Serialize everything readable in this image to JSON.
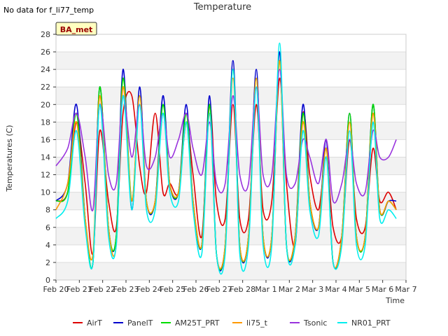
{
  "header": {
    "no_data_note": "No data for f_li77_temp"
  },
  "chart_data": {
    "type": "line",
    "title": "Temperature",
    "xlabel": "Time",
    "ylabel": "Temperatures (C)",
    "station_label": "BA_met",
    "ylim": [
      0,
      28
    ],
    "yticks": [
      0,
      2,
      4,
      6,
      8,
      10,
      12,
      14,
      16,
      18,
      20,
      22,
      24,
      26,
      28
    ],
    "xlim": [
      "2023-02-20",
      "2023-03-07"
    ],
    "xticks": [
      "Feb 20",
      "Feb 21",
      "Feb 22",
      "Feb 23",
      "Feb 24",
      "Feb 25",
      "Feb 26",
      "Feb 27",
      "Feb 28",
      "Mar 1",
      "Mar 2",
      "Mar 3",
      "Mar 4",
      "Mar 5",
      "Mar 6",
      "Mar 7"
    ],
    "grid": true,
    "legend_position": "bottom",
    "series": [
      {
        "name": "AirT",
        "color": "#dd0000",
        "x": [
          "2023-02-20",
          "2023-02-20 12:00",
          "2023-02-20 21:00",
          "2023-02-21 06:00",
          "2023-02-21 14:00",
          "2023-02-21 21:00",
          "2023-02-22 06:00",
          "2023-02-22 14:00",
          "2023-02-22 21:00",
          "2023-02-23 06:00",
          "2023-02-23 14:00",
          "2023-02-23 21:00",
          "2023-02-24 06:00",
          "2023-02-24 14:00",
          "2023-02-24 21:00",
          "2023-02-25 06:00",
          "2023-02-25 14:00",
          "2023-02-25 21:00",
          "2023-02-26 06:00",
          "2023-02-26 14:00",
          "2023-02-26 21:00",
          "2023-02-27 06:00",
          "2023-02-27 14:00",
          "2023-02-27 21:00",
          "2023-02-28 06:00",
          "2023-02-28 14:00",
          "2023-02-28 21:00",
          "2023-03-01 06:00",
          "2023-03-01 14:00",
          "2023-03-01 21:00",
          "2023-03-02 06:00",
          "2023-03-02 14:00",
          "2023-03-02 21:00",
          "2023-03-03 06:00",
          "2023-03-03 14:00",
          "2023-03-03 21:00",
          "2023-03-04 06:00",
          "2023-03-04 14:00",
          "2023-03-04 21:00",
          "2023-03-05 06:00",
          "2023-03-05 14:00",
          "2023-03-05 21:00",
          "2023-03-06 06:00",
          "2023-03-06 14:00"
        ],
        "y": [
          9,
          10,
          18,
          11,
          3,
          17,
          9,
          6,
          19,
          21,
          13,
          10,
          19,
          10,
          11,
          10,
          18,
          12,
          5,
          20,
          9,
          7,
          20,
          7,
          7,
          20,
          8,
          9,
          23,
          11,
          4,
          19,
          12,
          8,
          14,
          6,
          5,
          16,
          7,
          6,
          15,
          9,
          10,
          8
        ]
      },
      {
        "name": "PanelT",
        "color": "#0000cc",
        "x": [
          "2023-02-20",
          "2023-02-20 12:00",
          "2023-02-20 21:00",
          "2023-02-21 06:00",
          "2023-02-21 14:00",
          "2023-02-21 21:00",
          "2023-02-22 06:00",
          "2023-02-22 14:00",
          "2023-02-22 21:00",
          "2023-02-23 06:00",
          "2023-02-23 14:00",
          "2023-02-23 21:00",
          "2023-02-24 06:00",
          "2023-02-24 14:00",
          "2023-02-24 21:00",
          "2023-02-25 06:00",
          "2023-02-25 14:00",
          "2023-02-25 21:00",
          "2023-02-26 06:00",
          "2023-02-26 14:00",
          "2023-02-26 21:00",
          "2023-02-27 06:00",
          "2023-02-27 14:00",
          "2023-02-27 21:00",
          "2023-02-28 06:00",
          "2023-02-28 14:00",
          "2023-02-28 21:00",
          "2023-03-01 06:00",
          "2023-03-01 14:00",
          "2023-03-01 21:00",
          "2023-03-02 06:00",
          "2023-03-02 14:00",
          "2023-03-02 21:00",
          "2023-03-03 06:00",
          "2023-03-03 14:00",
          "2023-03-03 21:00",
          "2023-03-04 06:00",
          "2023-03-04 14:00",
          "2023-03-04 21:00",
          "2023-03-05 06:00",
          "2023-03-05 14:00",
          "2023-03-05 21:00",
          "2023-03-06 06:00",
          "2023-03-06 14:00"
        ],
        "y": [
          9,
          11,
          20,
          7,
          2,
          22,
          6,
          5,
          24,
          8,
          22,
          9,
          9,
          21,
          11,
          10,
          20,
          9,
          4,
          21,
          3,
          4,
          25,
          4,
          5,
          24,
          5,
          5,
          26,
          4,
          5,
          20,
          9,
          6,
          16,
          2,
          5,
          19,
          5,
          5,
          20,
          8,
          9,
          9
        ]
      },
      {
        "name": "AM25T_PRT",
        "color": "#00dd00",
        "x": [
          "2023-02-20",
          "2023-02-20 12:00",
          "2023-02-20 21:00",
          "2023-02-21 06:00",
          "2023-02-21 14:00",
          "2023-02-21 21:00",
          "2023-02-22 06:00",
          "2023-02-22 14:00",
          "2023-02-22 21:00",
          "2023-02-23 06:00",
          "2023-02-23 14:00",
          "2023-02-23 21:00",
          "2023-02-24 06:00",
          "2023-02-24 14:00",
          "2023-02-24 21:00",
          "2023-02-25 06:00",
          "2023-02-25 14:00",
          "2023-02-25 21:00",
          "2023-02-26 06:00",
          "2023-02-26 14:00",
          "2023-02-26 21:00",
          "2023-02-27 06:00",
          "2023-02-27 14:00",
          "2023-02-27 21:00",
          "2023-02-28 06:00",
          "2023-02-28 14:00",
          "2023-02-28 21:00",
          "2023-03-01 06:00",
          "2023-03-01 14:00",
          "2023-03-01 21:00",
          "2023-03-02 06:00",
          "2023-03-02 14:00",
          "2023-03-02 21:00",
          "2023-03-03 06:00",
          "2023-03-03 14:00",
          "2023-03-03 21:00",
          "2023-03-04 06:00",
          "2023-03-04 14:00",
          "2023-03-04 21:00",
          "2023-03-05 06:00",
          "2023-03-05 14:00",
          "2023-03-05 21:00",
          "2023-03-06 06:00",
          "2023-03-06 14:00"
        ],
        "y": [
          9,
          10,
          19,
          7,
          2,
          22,
          6,
          5,
          23,
          9,
          21,
          9,
          9,
          20,
          11,
          10,
          19,
          9,
          4,
          20,
          3,
          4,
          24,
          4,
          5,
          23,
          5,
          5,
          25,
          4,
          5,
          19,
          9,
          6,
          15,
          2,
          5,
          19,
          5,
          5,
          20,
          8,
          9,
          8
        ]
      },
      {
        "name": "li75_t",
        "color": "#ff9900",
        "x": [
          "2023-02-20",
          "2023-02-20 12:00",
          "2023-02-20 21:00",
          "2023-02-21 06:00",
          "2023-02-21 14:00",
          "2023-02-21 21:00",
          "2023-02-22 06:00",
          "2023-02-22 14:00",
          "2023-02-22 21:00",
          "2023-02-23 06:00",
          "2023-02-23 14:00",
          "2023-02-23 21:00",
          "2023-02-24 06:00",
          "2023-02-24 14:00",
          "2023-02-24 21:00",
          "2023-02-25 06:00",
          "2023-02-25 14:00",
          "2023-02-25 21:00",
          "2023-02-26 06:00",
          "2023-02-26 14:00",
          "2023-02-26 21:00",
          "2023-02-27 06:00",
          "2023-02-27 14:00",
          "2023-02-27 21:00",
          "2023-02-28 06:00",
          "2023-02-28 14:00",
          "2023-02-28 21:00",
          "2023-03-01 06:00",
          "2023-03-01 14:00",
          "2023-03-01 21:00",
          "2023-03-02 06:00",
          "2023-03-02 14:00",
          "2023-03-02 21:00",
          "2023-03-03 06:00",
          "2023-03-03 14:00",
          "2023-03-03 21:00",
          "2023-03-04 06:00",
          "2023-03-04 14:00",
          "2023-03-04 21:00",
          "2023-03-05 06:00",
          "2023-03-05 14:00",
          "2023-03-05 21:00",
          "2023-03-06 06:00",
          "2023-03-06 14:00"
        ],
        "y": [
          8,
          11,
          18,
          7,
          3,
          21,
          6,
          4,
          22,
          9,
          21,
          9,
          9,
          19,
          11,
          10,
          18,
          9,
          4,
          19,
          3,
          4,
          23,
          4,
          5,
          23,
          5,
          5,
          25,
          4,
          5,
          18,
          9,
          6,
          15,
          2,
          5,
          18,
          5,
          5,
          19,
          8,
          9,
          8
        ]
      },
      {
        "name": "Tsonic",
        "color": "#9933dd",
        "x": [
          "2023-02-20",
          "2023-02-20 12:00",
          "2023-02-20 21:00",
          "2023-02-21 06:00",
          "2023-02-21 14:00",
          "2023-02-21 21:00",
          "2023-02-22 06:00",
          "2023-02-22 14:00",
          "2023-02-22 21:00",
          "2023-02-23 06:00",
          "2023-02-23 14:00",
          "2023-02-23 21:00",
          "2023-02-24 06:00",
          "2023-02-24 14:00",
          "2023-02-24 21:00",
          "2023-02-25 06:00",
          "2023-02-25 14:00",
          "2023-02-25 21:00",
          "2023-02-26 06:00",
          "2023-02-26 14:00",
          "2023-02-26 21:00",
          "2023-02-27 06:00",
          "2023-02-27 14:00",
          "2023-02-27 21:00",
          "2023-02-28 06:00",
          "2023-02-28 14:00",
          "2023-02-28 21:00",
          "2023-03-01 06:00",
          "2023-03-01 14:00",
          "2023-03-01 21:00",
          "2023-03-02 06:00",
          "2023-03-02 14:00",
          "2023-03-02 21:00",
          "2023-03-03 06:00",
          "2023-03-03 14:00",
          "2023-03-03 21:00",
          "2023-03-04 06:00",
          "2023-03-04 14:00",
          "2023-03-04 21:00",
          "2023-03-05 06:00",
          "2023-03-05 14:00",
          "2023-03-05 21:00",
          "2023-03-06 06:00",
          "2023-03-06 14:00"
        ],
        "y": [
          13,
          15,
          19,
          14,
          8,
          20,
          12,
          11,
          21,
          14,
          20,
          13,
          14,
          19,
          14,
          16,
          19,
          15,
          12,
          18,
          11,
          11,
          21,
          12,
          11,
          22,
          12,
          12,
          24,
          12,
          11,
          16,
          14,
          11,
          16,
          9,
          11,
          16,
          11,
          10,
          17,
          14,
          14,
          16
        ]
      },
      {
        "name": "NR01_PRT",
        "color": "#00eeee",
        "x": [
          "2023-02-20",
          "2023-02-20 12:00",
          "2023-02-20 21:00",
          "2023-02-21 06:00",
          "2023-02-21 14:00",
          "2023-02-21 21:00",
          "2023-02-22 06:00",
          "2023-02-22 14:00",
          "2023-02-22 21:00",
          "2023-02-23 06:00",
          "2023-02-23 14:00",
          "2023-02-23 21:00",
          "2023-02-24 06:00",
          "2023-02-24 14:00",
          "2023-02-24 21:00",
          "2023-02-25 06:00",
          "2023-02-25 14:00",
          "2023-02-25 21:00",
          "2023-02-26 06:00",
          "2023-02-26 14:00",
          "2023-02-26 21:00",
          "2023-02-27 06:00",
          "2023-02-27 14:00",
          "2023-02-27 21:00",
          "2023-02-28 06:00",
          "2023-02-28 14:00",
          "2023-02-28 21:00",
          "2023-03-01 06:00",
          "2023-03-01 14:00",
          "2023-03-01 21:00",
          "2023-03-02 06:00",
          "2023-03-02 14:00",
          "2023-03-02 21:00",
          "2023-03-03 06:00",
          "2023-03-03 14:00",
          "2023-03-03 21:00",
          "2023-03-04 06:00",
          "2023-03-04 14:00",
          "2023-03-04 21:00",
          "2023-03-05 06:00",
          "2023-03-05 14:00",
          "2023-03-05 21:00",
          "2023-03-06 06:00",
          "2023-03-06 14:00"
        ],
        "y": [
          7,
          9,
          17,
          6,
          2,
          20,
          5,
          4,
          21,
          8,
          20,
          8,
          8,
          19,
          10,
          9,
          18,
          8,
          3,
          19,
          3,
          3,
          24,
          3,
          4,
          22,
          4,
          4,
          27,
          4,
          4,
          17,
          8,
          5,
          14,
          2,
          4,
          17,
          4,
          4,
          18,
          7,
          8,
          7
        ]
      }
    ]
  }
}
